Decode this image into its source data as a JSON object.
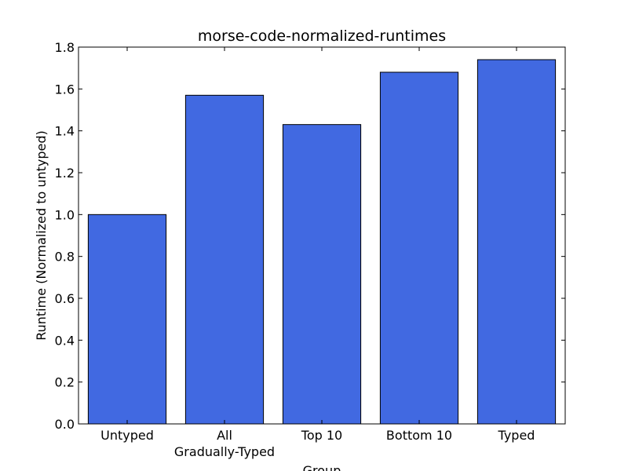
{
  "chart_data": {
    "type": "bar",
    "title": "morse-code-normalized-runtimes",
    "xlabel": "Group",
    "ylabel": "Runtime (Normalized to untyped)",
    "categories": [
      "Untyped",
      "All\nGradually-Typed",
      "Top 10",
      "Bottom 10",
      "Typed"
    ],
    "values": [
      1.0,
      1.57,
      1.43,
      1.68,
      1.74
    ],
    "ylim": [
      0,
      1.8
    ],
    "yticks": [
      "0.0",
      "0.2",
      "0.4",
      "0.6",
      "0.8",
      "1.0",
      "1.2",
      "1.4",
      "1.6",
      "1.8"
    ],
    "grid": false,
    "legend": "none",
    "colors": {
      "bar_fill": "#4169E1",
      "bar_edge": "#000000",
      "axes": "#000000",
      "background": "#ffffff"
    }
  }
}
